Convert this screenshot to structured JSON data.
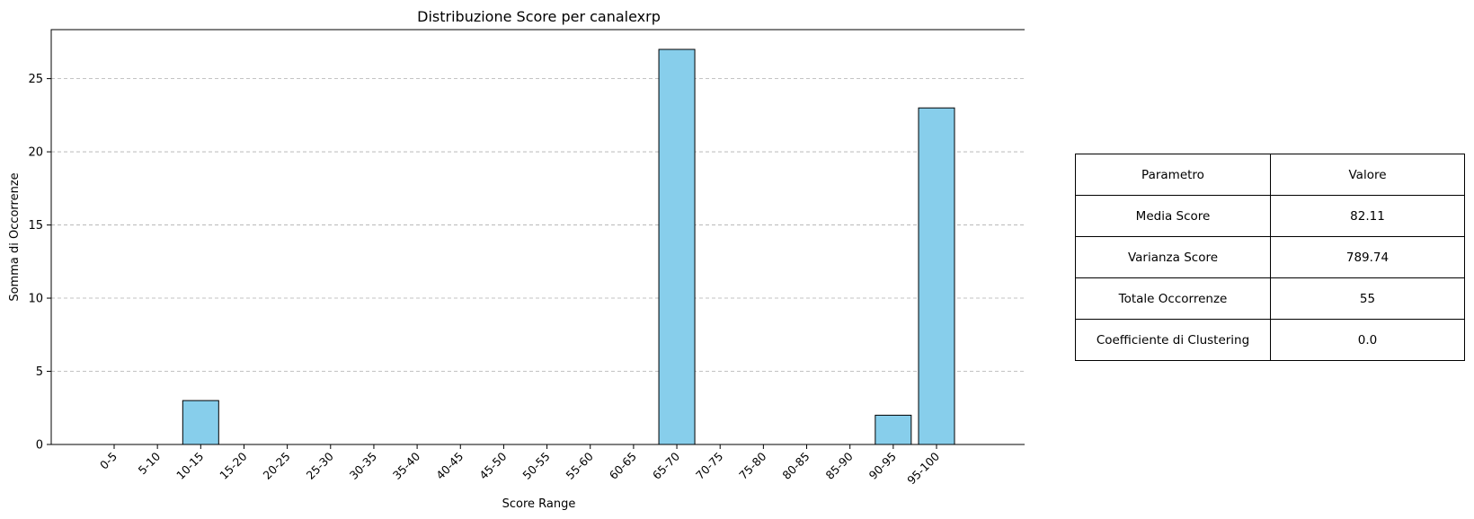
{
  "chart_data": {
    "type": "bar",
    "title": "Distribuzione Score per canalexrp",
    "xlabel": "Score Range",
    "ylabel": "Somma di Occorrenze",
    "categories": [
      "0-5",
      "5-10",
      "10-15",
      "15-20",
      "20-25",
      "25-30",
      "30-35",
      "35-40",
      "40-45",
      "45-50",
      "50-55",
      "55-60",
      "60-65",
      "65-70",
      "70-75",
      "75-80",
      "80-85",
      "85-90",
      "90-95",
      "95-100"
    ],
    "values": [
      0,
      0,
      3,
      0,
      0,
      0,
      0,
      0,
      0,
      0,
      0,
      0,
      0,
      27,
      0,
      0,
      0,
      0,
      2,
      23
    ],
    "ylim": [
      0,
      28.35
    ],
    "yticks": [
      0,
      5,
      10,
      15,
      20,
      25
    ],
    "grid": "y-dashed",
    "bar_color": "#87CEEB",
    "edge_color": "#000000"
  },
  "table": {
    "header": [
      "Parametro",
      "Valore"
    ],
    "rows": [
      [
        "Media Score",
        "82.11"
      ],
      [
        "Varianza Score",
        "789.74"
      ],
      [
        "Totale Occorrenze",
        "55"
      ],
      [
        "Coefficiente di Clustering",
        "0.0"
      ]
    ]
  }
}
